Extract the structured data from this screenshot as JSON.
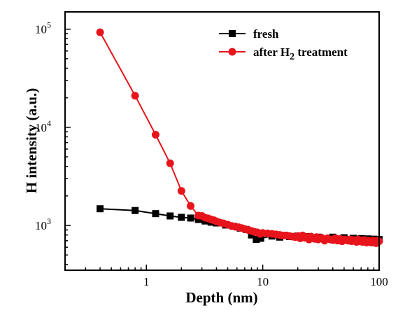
{
  "chart_data": {
    "type": "line",
    "xlabel": "Depth (nm)",
    "ylabel": "H intensity (a.u.)",
    "xscale": "log",
    "yscale": "log",
    "xlim": [
      0.2,
      100
    ],
    "ylim": [
      350,
      150000
    ],
    "x_ticks": [
      {
        "value": 1,
        "label": "1"
      },
      {
        "value": 10,
        "label": "10"
      },
      {
        "value": 100,
        "label": "100"
      }
    ],
    "y_ticks": [
      {
        "value": 1000,
        "base": "10",
        "exp": "3"
      },
      {
        "value": 10000,
        "base": "10",
        "exp": "4"
      },
      {
        "value": 100000,
        "base": "10",
        "exp": "5"
      }
    ],
    "legend_position": "top-right",
    "series": [
      {
        "name": "fresh",
        "color": "#000000",
        "marker": "square",
        "x": [
          0.4,
          0.8,
          1.2,
          1.6,
          2.0,
          2.4,
          2.8,
          3.2,
          3.6,
          4.0,
          4.8,
          5.6,
          6.4,
          7.2,
          8.0,
          8.8,
          9.6,
          12,
          14,
          17,
          20,
          25,
          30,
          40,
          50,
          60,
          70,
          80,
          90,
          100
        ],
        "y": [
          1480,
          1420,
          1320,
          1250,
          1210,
          1190,
          1150,
          1110,
          1080,
          1060,
          1010,
          980,
          940,
          910,
          800,
          720,
          740,
          780,
          760,
          770,
          780,
          770,
          760,
          760,
          750,
          740,
          735,
          730,
          725,
          720
        ]
      },
      {
        "name": "after H2 treatment",
        "label_main": "after H",
        "label_sub": "2",
        "label_rest": " treatment",
        "color": "#e8141c",
        "marker": "circle",
        "x": [
          0.4,
          0.8,
          1.2,
          1.6,
          2.0,
          2.4,
          2.8,
          3.0,
          3.2,
          3.4,
          3.6,
          3.8,
          4.0,
          4.3,
          4.6,
          5.0,
          5.4,
          5.8,
          6.2,
          6.6,
          7.0,
          7.5,
          8.0,
          8.5,
          9.0,
          9.5,
          10,
          11,
          12,
          13,
          14,
          15,
          16,
          17,
          18,
          19,
          20,
          21,
          22,
          23,
          24,
          25,
          26,
          27,
          28,
          29,
          30,
          32,
          34,
          36,
          38,
          40,
          42,
          44,
          46,
          48,
          50,
          52,
          54,
          56,
          58,
          60,
          62,
          64,
          66,
          68,
          70,
          72,
          74,
          76,
          78,
          80,
          82,
          84,
          86,
          88,
          90,
          92,
          94,
          96,
          98,
          100
        ],
        "y": [
          93000,
          21000,
          8400,
          4300,
          2250,
          1580,
          1260,
          1250,
          1200,
          1180,
          1150,
          1130,
          1100,
          1070,
          1050,
          1020,
          990,
          970,
          960,
          940,
          920,
          900,
          880,
          860,
          850,
          820,
          840,
          830,
          820,
          810,
          800,
          790,
          790,
          780,
          770,
          760,
          780,
          740,
          790,
          750,
          760,
          720,
          770,
          740,
          730,
          760,
          720,
          750,
          700,
          740,
          720,
          710,
          740,
          700,
          730,
          690,
          720,
          710,
          700,
          720,
          690,
          710,
          700,
          680,
          720,
          690,
          700,
          680,
          710,
          690,
          670,
          700,
          680,
          690,
          670,
          700,
          680,
          690,
          660,
          700,
          680,
          690
        ]
      }
    ]
  }
}
